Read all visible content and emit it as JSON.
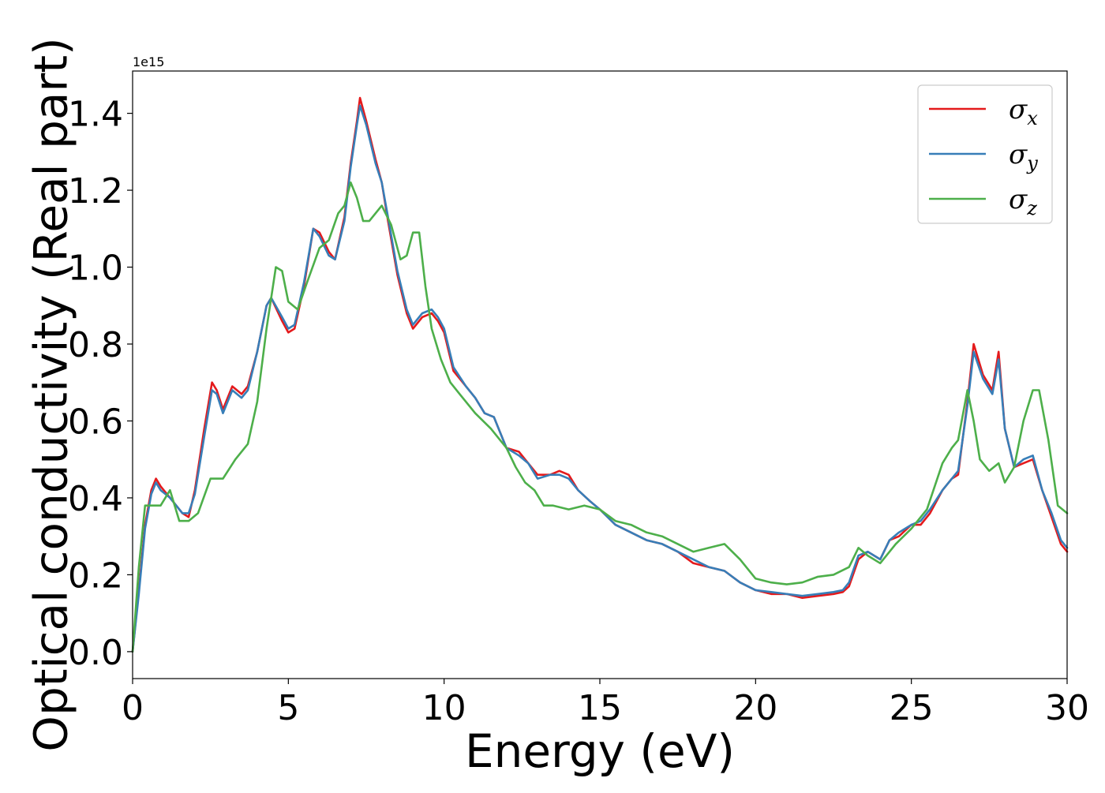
{
  "chart_data": {
    "type": "line",
    "title": "",
    "xlabel": "Energy (eV)",
    "ylabel": "Optical conductivity (Real part)",
    "y_offset_text": "1e15",
    "xlim": [
      0,
      30
    ],
    "ylim": [
      -0.07,
      1.51
    ],
    "xticks": [
      0,
      5,
      10,
      15,
      20,
      25,
      30
    ],
    "xtick_labels": [
      "0",
      "5",
      "10",
      "15",
      "20",
      "25",
      "30"
    ],
    "yticks": [
      0.0,
      0.2,
      0.4,
      0.6,
      0.8,
      1.0,
      1.2,
      1.4
    ],
    "ytick_labels": [
      "0.0",
      "0.2",
      "0.4",
      "0.6",
      "0.8",
      "1.0",
      "1.2",
      "1.4"
    ],
    "grid": false,
    "legend_position": "top-right",
    "series": [
      {
        "name": "σx",
        "legend_symbol": "σ",
        "legend_subscript": "x",
        "color": "#e41a1c",
        "x": [
          0,
          0.2,
          0.4,
          0.6,
          0.75,
          0.9,
          1.2,
          1.6,
          1.8,
          2.0,
          2.3,
          2.55,
          2.7,
          2.9,
          3.2,
          3.5,
          3.7,
          4.0,
          4.3,
          4.45,
          4.8,
          5.0,
          5.2,
          5.5,
          5.8,
          6.0,
          6.3,
          6.5,
          6.8,
          7.0,
          7.2,
          7.3,
          7.5,
          7.8,
          8.0,
          8.2,
          8.5,
          8.8,
          9.0,
          9.3,
          9.6,
          9.8,
          10.0,
          10.3,
          10.7,
          11.0,
          11.3,
          11.6,
          12.0,
          12.4,
          12.7,
          13.0,
          13.4,
          13.7,
          14.0,
          14.3,
          14.7,
          15.0,
          15.5,
          16.0,
          16.5,
          17.0,
          17.5,
          18.0,
          18.5,
          19.0,
          19.5,
          20.0,
          20.5,
          21.0,
          21.5,
          22.0,
          22.5,
          22.8,
          23.0,
          23.3,
          23.6,
          24.0,
          24.3,
          24.6,
          25.0,
          25.3,
          25.6,
          26.0,
          26.3,
          26.5,
          26.8,
          27.0,
          27.3,
          27.6,
          27.8,
          28.0,
          28.3,
          28.6,
          28.9,
          29.2,
          29.5,
          29.8,
          30.0
        ],
        "values": [
          0.0,
          0.16,
          0.33,
          0.42,
          0.45,
          0.43,
          0.4,
          0.36,
          0.35,
          0.42,
          0.58,
          0.7,
          0.68,
          0.63,
          0.69,
          0.67,
          0.69,
          0.78,
          0.9,
          0.92,
          0.86,
          0.83,
          0.84,
          0.95,
          1.1,
          1.09,
          1.04,
          1.02,
          1.13,
          1.27,
          1.38,
          1.44,
          1.38,
          1.28,
          1.22,
          1.12,
          0.98,
          0.88,
          0.84,
          0.87,
          0.88,
          0.86,
          0.83,
          0.73,
          0.69,
          0.66,
          0.62,
          0.61,
          0.53,
          0.52,
          0.49,
          0.46,
          0.46,
          0.47,
          0.46,
          0.42,
          0.39,
          0.37,
          0.33,
          0.31,
          0.29,
          0.28,
          0.26,
          0.23,
          0.22,
          0.21,
          0.18,
          0.16,
          0.15,
          0.15,
          0.14,
          0.145,
          0.15,
          0.155,
          0.17,
          0.24,
          0.26,
          0.24,
          0.29,
          0.3,
          0.33,
          0.33,
          0.36,
          0.42,
          0.45,
          0.46,
          0.65,
          0.8,
          0.72,
          0.68,
          0.78,
          0.58,
          0.48,
          0.49,
          0.5,
          0.42,
          0.35,
          0.28,
          0.26
        ]
      },
      {
        "name": "σy",
        "legend_symbol": "σ",
        "legend_subscript": "y",
        "color": "#377eb8",
        "x": [
          0,
          0.2,
          0.4,
          0.6,
          0.75,
          0.9,
          1.2,
          1.6,
          1.8,
          2.0,
          2.3,
          2.55,
          2.7,
          2.9,
          3.2,
          3.5,
          3.7,
          4.0,
          4.3,
          4.45,
          4.8,
          5.0,
          5.2,
          5.5,
          5.8,
          6.0,
          6.3,
          6.5,
          6.8,
          7.0,
          7.2,
          7.3,
          7.5,
          7.8,
          8.0,
          8.2,
          8.5,
          8.8,
          9.0,
          9.3,
          9.6,
          9.8,
          10.0,
          10.3,
          10.7,
          11.0,
          11.3,
          11.6,
          12.0,
          12.4,
          12.7,
          13.0,
          13.4,
          13.7,
          14.0,
          14.3,
          14.7,
          15.0,
          15.5,
          16.0,
          16.5,
          17.0,
          17.5,
          18.0,
          18.5,
          19.0,
          19.5,
          20.0,
          20.5,
          21.0,
          21.5,
          22.0,
          22.5,
          22.8,
          23.0,
          23.3,
          23.6,
          24.0,
          24.3,
          24.6,
          25.0,
          25.3,
          25.6,
          26.0,
          26.3,
          26.5,
          26.8,
          27.0,
          27.3,
          27.6,
          27.8,
          28.0,
          28.3,
          28.6,
          28.9,
          29.2,
          29.5,
          29.8,
          30.0
        ],
        "values": [
          0.0,
          0.15,
          0.32,
          0.41,
          0.44,
          0.42,
          0.4,
          0.36,
          0.36,
          0.41,
          0.56,
          0.68,
          0.67,
          0.62,
          0.68,
          0.66,
          0.68,
          0.78,
          0.9,
          0.92,
          0.87,
          0.84,
          0.85,
          0.96,
          1.1,
          1.08,
          1.03,
          1.02,
          1.12,
          1.26,
          1.37,
          1.42,
          1.37,
          1.27,
          1.22,
          1.13,
          0.99,
          0.89,
          0.85,
          0.88,
          0.89,
          0.87,
          0.84,
          0.74,
          0.69,
          0.66,
          0.62,
          0.61,
          0.53,
          0.51,
          0.49,
          0.45,
          0.46,
          0.46,
          0.45,
          0.42,
          0.39,
          0.37,
          0.33,
          0.31,
          0.29,
          0.28,
          0.26,
          0.24,
          0.22,
          0.21,
          0.18,
          0.16,
          0.155,
          0.15,
          0.145,
          0.15,
          0.155,
          0.16,
          0.18,
          0.25,
          0.26,
          0.24,
          0.29,
          0.31,
          0.33,
          0.34,
          0.37,
          0.42,
          0.45,
          0.47,
          0.64,
          0.78,
          0.71,
          0.67,
          0.76,
          0.58,
          0.48,
          0.5,
          0.51,
          0.42,
          0.36,
          0.29,
          0.27
        ]
      },
      {
        "name": "σz",
        "legend_symbol": "σ",
        "legend_subscript": "z",
        "color": "#4daf4a",
        "x": [
          0,
          0.2,
          0.4,
          0.6,
          0.9,
          1.2,
          1.5,
          1.8,
          2.1,
          2.5,
          2.9,
          3.3,
          3.7,
          4.0,
          4.3,
          4.6,
          4.8,
          5.0,
          5.3,
          5.6,
          6.0,
          6.3,
          6.6,
          6.8,
          7.0,
          7.2,
          7.4,
          7.6,
          8.0,
          8.3,
          8.6,
          8.8,
          9.0,
          9.2,
          9.4,
          9.6,
          9.9,
          10.2,
          10.5,
          11.0,
          11.5,
          12.0,
          12.3,
          12.6,
          12.9,
          13.2,
          13.5,
          14.0,
          14.5,
          15.0,
          15.5,
          16.0,
          16.5,
          17.0,
          17.5,
          18.0,
          18.5,
          19.0,
          19.5,
          20.0,
          20.5,
          21.0,
          21.5,
          22.0,
          22.5,
          23.0,
          23.3,
          23.6,
          24.0,
          24.5,
          25.0,
          25.5,
          26.0,
          26.3,
          26.5,
          26.8,
          27.0,
          27.2,
          27.5,
          27.8,
          28.0,
          28.3,
          28.6,
          28.9,
          29.1,
          29.4,
          29.7,
          30.0
        ],
        "values": [
          0.0,
          0.22,
          0.38,
          0.38,
          0.38,
          0.42,
          0.34,
          0.34,
          0.36,
          0.45,
          0.45,
          0.5,
          0.54,
          0.65,
          0.84,
          1.0,
          0.99,
          0.91,
          0.89,
          0.96,
          1.05,
          1.07,
          1.14,
          1.16,
          1.22,
          1.18,
          1.12,
          1.12,
          1.16,
          1.11,
          1.02,
          1.03,
          1.09,
          1.09,
          0.95,
          0.84,
          0.76,
          0.7,
          0.67,
          0.62,
          0.58,
          0.53,
          0.48,
          0.44,
          0.42,
          0.38,
          0.38,
          0.37,
          0.38,
          0.37,
          0.34,
          0.33,
          0.31,
          0.3,
          0.28,
          0.26,
          0.27,
          0.28,
          0.24,
          0.19,
          0.18,
          0.175,
          0.18,
          0.195,
          0.2,
          0.22,
          0.27,
          0.25,
          0.23,
          0.28,
          0.32,
          0.37,
          0.49,
          0.53,
          0.55,
          0.68,
          0.6,
          0.5,
          0.47,
          0.49,
          0.44,
          0.48,
          0.6,
          0.68,
          0.68,
          0.55,
          0.38,
          0.36
        ]
      }
    ]
  }
}
